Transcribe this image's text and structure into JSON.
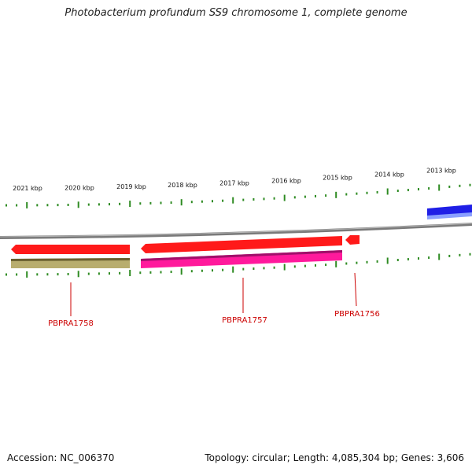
{
  "title": "Photobacterium profundum SS9 chromosome 1, complete genome",
  "footer": {
    "accession": "Accession: NC_006370",
    "stats": "Topology: circular; Length: 4,085,304 bp; Genes: 3,606"
  },
  "colors": {
    "tick": "#2e8b22",
    "backbone": "#7a7a7a",
    "forward_gene": "#ff1a1a",
    "reverse_gene_a": "#b8ad6e",
    "reverse_gene_b": "#ff1a9c",
    "other_feature": "#1f1fe6",
    "gene_label": "#cc0000"
  },
  "scale_labels": [
    "2021 kbp",
    "2020 kbp",
    "2019 kbp",
    "2018 kbp",
    "2017 kbp",
    "2016 kbp",
    "2015 kbp",
    "2014 kbp",
    "2013 kbp"
  ],
  "genes": [
    {
      "label": "PBPRA1758"
    },
    {
      "label": "PBPRA1757"
    },
    {
      "label": "PBPRA1756"
    }
  ]
}
